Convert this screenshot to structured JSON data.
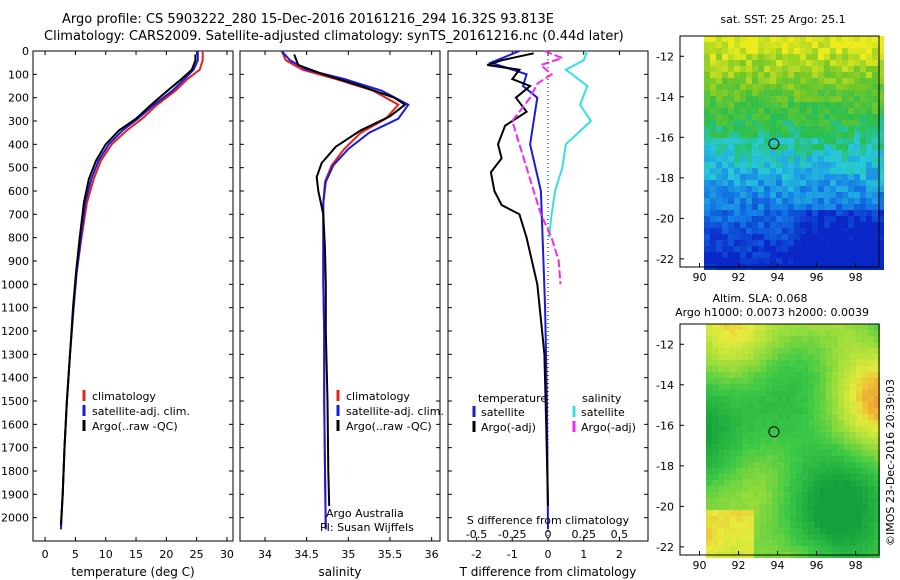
{
  "header": {
    "line1": "Argo profile: CS 5903222_280 15-Dec-2016 20161216_294 16.32S 93.813E",
    "line2": "Climatology: CARS2009. Satellite-adjusted climatology: synTS_20161216.nc (0.44d later)"
  },
  "watermark": "©IMOS 23-Dec-2016 20:39:03",
  "colors": {
    "climatology": "#e8201b",
    "satellite": "#1a1adc",
    "argo": "#000000",
    "salinity_sat": "#33e0e8",
    "salinity_argo": "#ee2bee"
  },
  "chart_data": [
    {
      "id": "temperature",
      "type": "line",
      "xlabel": "temperature (deg C)",
      "ylabel": "",
      "xlim": [
        -2,
        31
      ],
      "ylim": [
        2100,
        0
      ],
      "xticks": [
        0,
        5,
        10,
        15,
        20,
        25,
        30
      ],
      "yticks": [
        0,
        100,
        200,
        300,
        400,
        500,
        600,
        700,
        800,
        900,
        1000,
        1100,
        1200,
        1300,
        1400,
        1500,
        1600,
        1700,
        1800,
        1900,
        2000
      ],
      "legend": [
        "climatology",
        "satellite-adj. clim.",
        "Argo(..raw -QC)"
      ],
      "series": [
        {
          "name": "climatology",
          "color": "#e8201b",
          "points": [
            [
              26,
              0
            ],
            [
              26,
              40
            ],
            [
              25.5,
              80
            ],
            [
              23.5,
              120
            ],
            [
              21.5,
              170
            ],
            [
              18.5,
              230
            ],
            [
              16,
              290
            ],
            [
              13.5,
              340
            ],
            [
              11,
              400
            ],
            [
              9.2,
              470
            ],
            [
              8,
              550
            ],
            [
              6.9,
              650
            ],
            [
              6,
              800
            ],
            [
              5.2,
              950
            ],
            [
              4.7,
              1100
            ],
            [
              4.1,
              1300
            ],
            [
              3.6,
              1500
            ],
            [
              3.2,
              1700
            ],
            [
              2.9,
              1900
            ],
            [
              2.6,
              2050
            ]
          ]
        },
        {
          "name": "satellite-adj. clim.",
          "color": "#1a1adc",
          "points": [
            [
              25.2,
              0
            ],
            [
              25.2,
              40
            ],
            [
              24.5,
              80
            ],
            [
              23,
              120
            ],
            [
              21,
              170
            ],
            [
              18,
              230
            ],
            [
              15.3,
              290
            ],
            [
              12.8,
              340
            ],
            [
              10.5,
              400
            ],
            [
              8.8,
              470
            ],
            [
              7.6,
              550
            ],
            [
              6.6,
              650
            ],
            [
              5.9,
              800
            ],
            [
              5.2,
              950
            ],
            [
              4.7,
              1100
            ],
            [
              4.1,
              1300
            ],
            [
              3.6,
              1500
            ],
            [
              3.2,
              1700
            ],
            [
              2.9,
              1900
            ],
            [
              2.6,
              2050
            ]
          ]
        },
        {
          "name": "Argo(..raw -QC)",
          "color": "#000000",
          "points": [
            [
              24.8,
              15
            ],
            [
              24.8,
              40
            ],
            [
              24.2,
              80
            ],
            [
              22.5,
              120
            ],
            [
              20.2,
              170
            ],
            [
              17.5,
              230
            ],
            [
              15,
              290
            ],
            [
              12.2,
              340
            ],
            [
              10,
              400
            ],
            [
              8.4,
              470
            ],
            [
              7.2,
              550
            ],
            [
              6.4,
              650
            ],
            [
              5.7,
              800
            ],
            [
              5.1,
              950
            ],
            [
              4.6,
              1100
            ],
            [
              4.1,
              1300
            ],
            [
              3.6,
              1500
            ],
            [
              3.2,
              1700
            ],
            [
              2.9,
              1900
            ],
            [
              2.6,
              2030
            ]
          ]
        }
      ]
    },
    {
      "id": "salinity",
      "type": "line",
      "xlabel": "salinity",
      "ylabel": "",
      "xlim": [
        33.7,
        36.1
      ],
      "ylim": [
        2100,
        0
      ],
      "xticks": [
        34,
        34.5,
        35,
        35.5,
        36
      ],
      "legend": [
        "climatology",
        "satellite-adj. clim.",
        "Argo(..raw -QC)"
      ],
      "series": [
        {
          "name": "climatology",
          "color": "#e8201b",
          "points": [
            [
              34.2,
              0
            ],
            [
              34.25,
              40
            ],
            [
              34.45,
              80
            ],
            [
              34.85,
              120
            ],
            [
              35.3,
              170
            ],
            [
              35.6,
              230
            ],
            [
              35.45,
              290
            ],
            [
              35.15,
              350
            ],
            [
              34.95,
              420
            ],
            [
              34.8,
              490
            ],
            [
              34.72,
              560
            ],
            [
              34.7,
              650
            ],
            [
              34.7,
              800
            ],
            [
              34.7,
              1000
            ],
            [
              34.71,
              1200
            ],
            [
              34.71,
              1500
            ],
            [
              34.72,
              1800
            ],
            [
              34.73,
              2050
            ]
          ]
        },
        {
          "name": "satellite-adj. clim.",
          "color": "#1a1adc",
          "points": [
            [
              34.2,
              0
            ],
            [
              34.3,
              40
            ],
            [
              34.5,
              80
            ],
            [
              34.95,
              120
            ],
            [
              35.4,
              170
            ],
            [
              35.72,
              230
            ],
            [
              35.6,
              290
            ],
            [
              35.25,
              350
            ],
            [
              35.0,
              420
            ],
            [
              34.82,
              490
            ],
            [
              34.73,
              560
            ],
            [
              34.7,
              650
            ],
            [
              34.7,
              800
            ],
            [
              34.7,
              1000
            ],
            [
              34.71,
              1200
            ],
            [
              34.71,
              1500
            ],
            [
              34.72,
              1800
            ],
            [
              34.73,
              2050
            ]
          ]
        },
        {
          "name": "Argo(..raw -QC)",
          "color": "#000000",
          "points": [
            [
              34.35,
              15
            ],
            [
              34.4,
              60
            ],
            [
              34.7,
              100
            ],
            [
              35.15,
              150
            ],
            [
              35.55,
              200
            ],
            [
              35.68,
              230
            ],
            [
              35.5,
              280
            ],
            [
              35.15,
              340
            ],
            [
              34.85,
              410
            ],
            [
              34.68,
              480
            ],
            [
              34.62,
              540
            ],
            [
              34.64,
              600
            ],
            [
              34.7,
              700
            ],
            [
              34.72,
              850
            ],
            [
              34.73,
              1000
            ],
            [
              34.73,
              1200
            ],
            [
              34.75,
              1500
            ],
            [
              34.76,
              1800
            ],
            [
              34.77,
              1950
            ]
          ]
        }
      ]
    },
    {
      "id": "difference",
      "type": "line",
      "xlabel": "T difference from climatology",
      "xlabel_top": "S difference from climatology",
      "xlim": [
        -2.8,
        2.8
      ],
      "ylim": [
        2100,
        0
      ],
      "xticks": [
        -2,
        -1,
        0,
        1,
        2
      ],
      "xticks_s": [
        "-0.5",
        "-0.25",
        "0",
        "0.25",
        "0.5"
      ],
      "legend_temp_title": "temperature",
      "legend_sal_title": "salinity",
      "legend_items": [
        "satellite",
        "Argo(-adj)",
        "satellite",
        "Argo(-adj)"
      ],
      "series": [
        {
          "name": "satellite",
          "color": "#1a1adc",
          "points": [
            [
              -0.8,
              0
            ],
            [
              -1.6,
              50
            ],
            [
              -0.6,
              100
            ],
            [
              -0.7,
              150
            ],
            [
              -0.3,
              200
            ],
            [
              -0.4,
              300
            ],
            [
              -0.5,
              400
            ],
            [
              -0.35,
              500
            ],
            [
              -0.2,
              600
            ],
            [
              -0.15,
              800
            ],
            [
              -0.08,
              1100
            ],
            [
              -0.03,
              1500
            ],
            [
              0,
              2050
            ]
          ]
        },
        {
          "name": "Argo(-adj)",
          "color": "#000000",
          "points": [
            [
              -0.4,
              10
            ],
            [
              -1.3,
              40
            ],
            [
              -1.7,
              60
            ],
            [
              -0.8,
              80
            ],
            [
              -1.0,
              120
            ],
            [
              -0.5,
              150
            ],
            [
              -0.9,
              200
            ],
            [
              -0.6,
              260
            ],
            [
              -1.2,
              320
            ],
            [
              -1.4,
              400
            ],
            [
              -1.3,
              460
            ],
            [
              -1.6,
              520
            ],
            [
              -1.5,
              600
            ],
            [
              -1.3,
              660
            ],
            [
              -0.8,
              700
            ],
            [
              -0.6,
              800
            ],
            [
              -0.3,
              1000
            ],
            [
              -0.2,
              1150
            ],
            [
              -0.1,
              1300
            ],
            [
              -0.05,
              1600
            ],
            [
              0,
              1950
            ]
          ]
        },
        {
          "name": "satellite",
          "color": "#33e0e8",
          "points": [
            [
              1.1,
              0
            ],
            [
              1.0,
              40
            ],
            [
              0.5,
              80
            ],
            [
              1.1,
              150
            ],
            [
              0.9,
              230
            ],
            [
              1.2,
              300
            ],
            [
              0.5,
              400
            ],
            [
              0.4,
              500
            ],
            [
              0.2,
              600
            ],
            [
              0.1,
              700
            ],
            [
              0.03,
              800
            ]
          ]
        },
        {
          "name": "Argo(-adj)",
          "color": "#ee2bee",
          "points": [
            [
              -0.1,
              0
            ],
            [
              0.4,
              30
            ],
            [
              -0.2,
              60
            ],
            [
              0.1,
              100
            ],
            [
              -0.3,
              140
            ],
            [
              -0.5,
              200
            ],
            [
              -1.0,
              300
            ],
            [
              -0.8,
              400
            ],
            [
              -0.6,
              500
            ],
            [
              -0.4,
              600
            ],
            [
              -0.2,
              700
            ],
            [
              0.1,
              800
            ],
            [
              0.3,
              900
            ],
            [
              0.35,
              1000
            ]
          ]
        }
      ]
    },
    {
      "id": "sst-map",
      "type": "heatmap",
      "title": "sat. SST: 25 Argo: 25.1",
      "xlim": [
        89,
        99.2
      ],
      "ylim": [
        -22.4,
        -11
      ],
      "xticks": [
        90,
        92,
        94,
        96,
        98
      ],
      "yticks": [
        -12,
        -14,
        -16,
        -18,
        -20,
        -22
      ],
      "marker": [
        93.813,
        -16.32
      ]
    },
    {
      "id": "sla-map",
      "type": "heatmap",
      "title": "Altim. SLA: 0.068",
      "subtitle": "Argo h1000: 0.0073 h2000: 0.0039",
      "xlim": [
        89,
        99.2
      ],
      "ylim": [
        -22.4,
        -11
      ],
      "xticks": [
        90,
        92,
        94,
        96,
        98
      ],
      "yticks": [
        -12,
        -14,
        -16,
        -18,
        -20,
        -22
      ],
      "marker": [
        93.813,
        -16.32
      ]
    }
  ]
}
